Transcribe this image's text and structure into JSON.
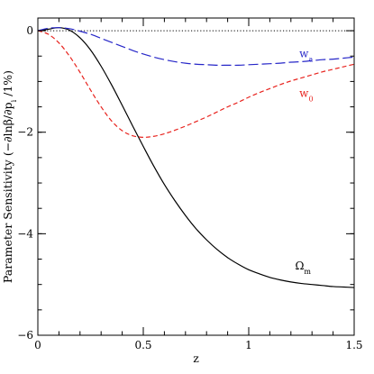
{
  "chart_data": {
    "type": "line",
    "xlabel": "z",
    "ylabel": "Parameter Sensitivity (−∂lnβ/∂p",
    "ylabel_sub": "i",
    "ylabel_end": " /1%)",
    "xlim": [
      0,
      1.5
    ],
    "ylim": [
      -6,
      0.25
    ],
    "x_ticks": [
      0,
      0.5,
      1,
      1.5
    ],
    "x_tick_labels": [
      "0",
      "0.5",
      "1",
      "1.5"
    ],
    "y_ticks": [
      0,
      -2,
      -4,
      -6
    ],
    "y_tick_labels": [
      "0",
      "−2",
      "−4",
      "−6"
    ],
    "reference_line": {
      "y": 0,
      "style": "dotted",
      "color": "#000000"
    },
    "series": [
      {
        "name": "Ω",
        "name_sub": "m",
        "color": "#000000",
        "style": "solid",
        "label_at": [
          1.22,
          -4.7
        ],
        "x": [
          0,
          0.05,
          0.1,
          0.15,
          0.2,
          0.25,
          0.3,
          0.35,
          0.4,
          0.45,
          0.5,
          0.55,
          0.6,
          0.65,
          0.7,
          0.75,
          0.8,
          0.85,
          0.9,
          0.95,
          1.0,
          1.05,
          1.1,
          1.15,
          1.2,
          1.25,
          1.3,
          1.35,
          1.4,
          1.45,
          1.5
        ],
        "y": [
          0,
          0.03,
          0.06,
          0.01,
          -0.14,
          -0.38,
          -0.7,
          -1.07,
          -1.47,
          -1.88,
          -2.28,
          -2.67,
          -3.03,
          -3.35,
          -3.64,
          -3.9,
          -4.12,
          -4.31,
          -4.47,
          -4.6,
          -4.71,
          -4.79,
          -4.86,
          -4.91,
          -4.95,
          -4.98,
          -5.0,
          -5.02,
          -5.04,
          -5.05,
          -5.06
        ]
      },
      {
        "name": "w",
        "name_sub": "0",
        "color": "#e8231e",
        "style": "dashed",
        "label_at": [
          1.24,
          -1.3
        ],
        "x": [
          0,
          0.05,
          0.1,
          0.15,
          0.2,
          0.25,
          0.3,
          0.35,
          0.4,
          0.45,
          0.5,
          0.55,
          0.6,
          0.65,
          0.7,
          0.75,
          0.8,
          0.85,
          0.9,
          0.95,
          1.0,
          1.05,
          1.1,
          1.15,
          1.2,
          1.25,
          1.3,
          1.35,
          1.4,
          1.45,
          1.5
        ],
        "y": [
          0,
          -0.07,
          -0.24,
          -0.5,
          -0.82,
          -1.17,
          -1.5,
          -1.78,
          -1.97,
          -2.07,
          -2.1,
          -2.08,
          -2.03,
          -1.96,
          -1.88,
          -1.79,
          -1.7,
          -1.6,
          -1.5,
          -1.41,
          -1.31,
          -1.22,
          -1.14,
          -1.06,
          -0.99,
          -0.93,
          -0.87,
          -0.81,
          -0.76,
          -0.71,
          -0.66
        ]
      },
      {
        "name": "w",
        "name_sub": "a",
        "color": "#2727c8",
        "style": "longdash",
        "label_at": [
          1.24,
          -0.52
        ],
        "x": [
          0,
          0.05,
          0.1,
          0.15,
          0.2,
          0.25,
          0.3,
          0.35,
          0.4,
          0.45,
          0.5,
          0.55,
          0.6,
          0.65,
          0.7,
          0.75,
          0.8,
          0.85,
          0.9,
          0.95,
          1.0,
          1.05,
          1.1,
          1.15,
          1.2,
          1.25,
          1.3,
          1.35,
          1.4,
          1.45,
          1.5
        ],
        "y": [
          0,
          0.05,
          0.06,
          0.04,
          -0.01,
          -0.07,
          -0.15,
          -0.23,
          -0.31,
          -0.39,
          -0.46,
          -0.52,
          -0.57,
          -0.61,
          -0.64,
          -0.66,
          -0.67,
          -0.68,
          -0.68,
          -0.68,
          -0.67,
          -0.66,
          -0.65,
          -0.64,
          -0.62,
          -0.61,
          -0.59,
          -0.57,
          -0.56,
          -0.54,
          -0.52
        ]
      }
    ]
  }
}
